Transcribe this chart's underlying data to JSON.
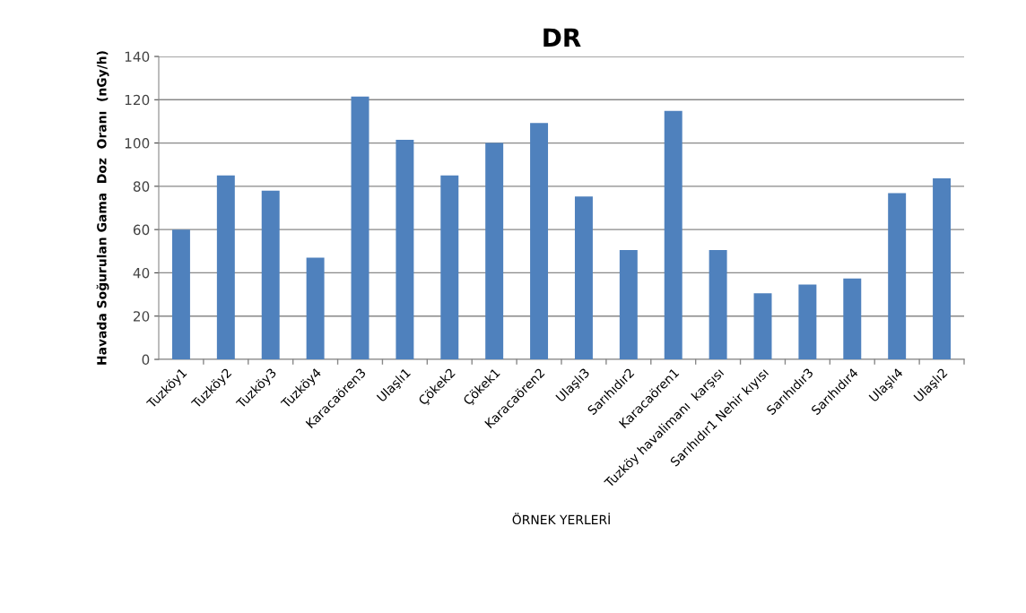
{
  "chart_data": {
    "type": "bar",
    "title": "DR",
    "xlabel": "ÖRNEK YERLERİ",
    "ylabel": "Havada Soğurulan Gama  Doz  Oranı  (nGy/h)",
    "categories": [
      "Tuzköy1",
      "Tuzköy2",
      "Tuzköy3",
      "Tuzköy4",
      "Karacaören3",
      "Ulaşlı1",
      "Çökek2",
      "Çökek1",
      "Karacaören2",
      "Ulaşlı3",
      "Sarıhıdır2",
      "Karacaören1",
      "Tuzköy havalimanı  karşısı",
      "Sarıhıdır1 Nehir kıyısı",
      "Sarıhıdır3",
      "Sarıhıdır4",
      "Ulaşlı4",
      "Ulaşlı2"
    ],
    "values": [
      60,
      85,
      78,
      47,
      121.5,
      101.5,
      85,
      100,
      109.2,
      75.3,
      50.5,
      114.8,
      50.5,
      30.5,
      34.6,
      37.4,
      76.8,
      83.7
    ],
    "color": "#4f81bd",
    "ylim": [
      0,
      140
    ],
    "yticks": [
      0,
      20,
      40,
      60,
      80,
      100,
      120,
      140
    ],
    "grid": "y",
    "legend": false
  }
}
